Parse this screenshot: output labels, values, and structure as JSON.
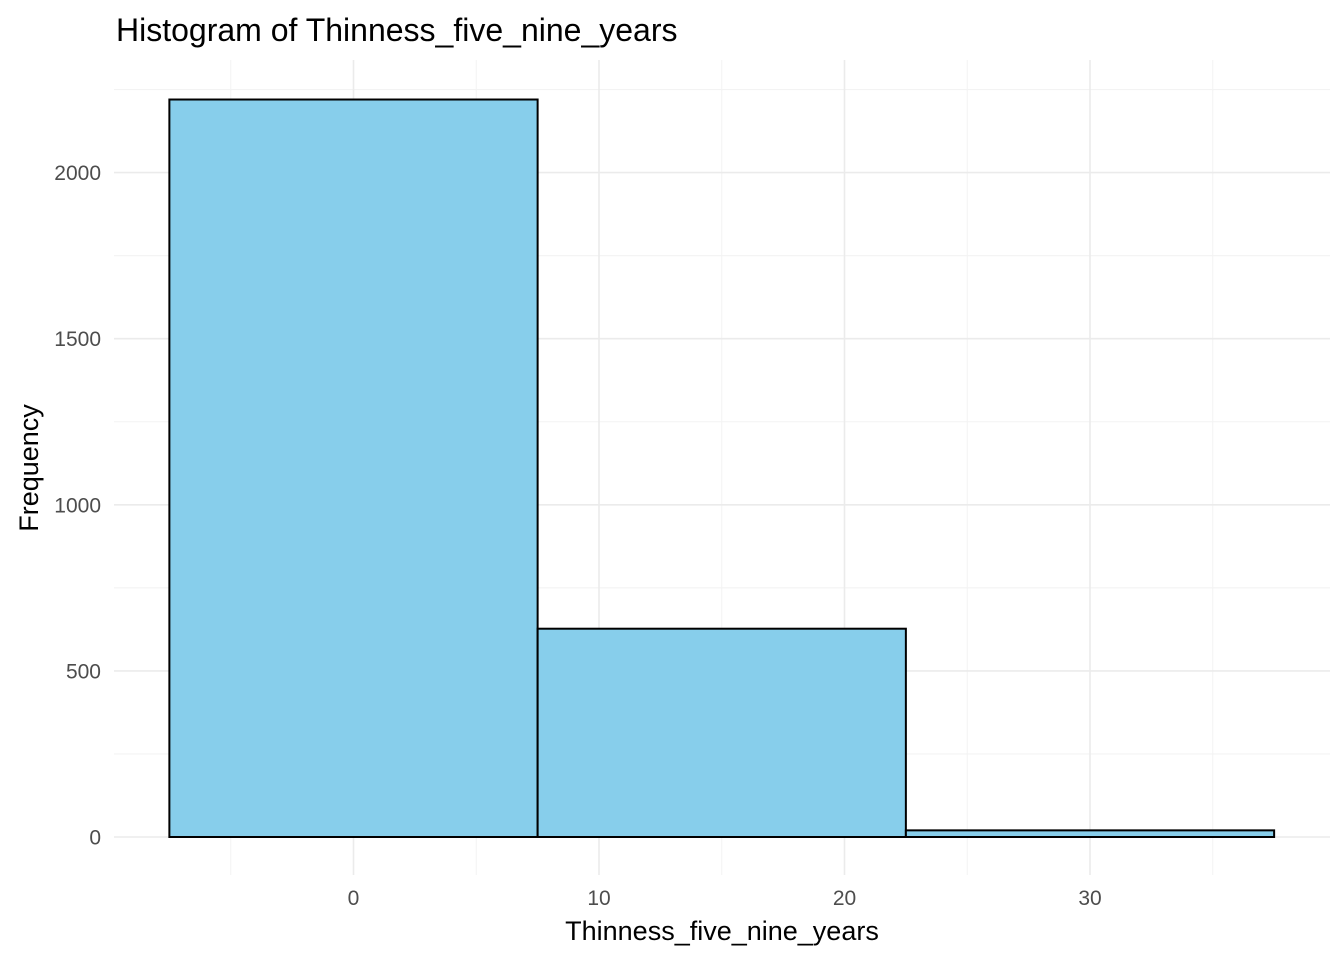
{
  "chart_data": {
    "type": "bar",
    "title": "Histogram of Thinness_five_nine_years",
    "xlabel": "Thinness_five_nine_years",
    "ylabel": "Frequency",
    "xlim": [
      -7.5,
      37.5
    ],
    "ylim": [
      0,
      2220
    ],
    "x_ticks": [
      0,
      10,
      20,
      30
    ],
    "y_ticks": [
      0,
      500,
      1000,
      1500,
      2000
    ],
    "bins": [
      {
        "x_start": -7.5,
        "x_end": 7.5,
        "count": 2220
      },
      {
        "x_start": 7.5,
        "x_end": 22.5,
        "count": 627
      },
      {
        "x_start": 22.5,
        "x_end": 37.5,
        "count": 20
      }
    ],
    "grid": true,
    "legend": "none",
    "colors": {
      "fill": "#87ceeb",
      "outline": "#000000",
      "grid": "#ebebeb"
    }
  }
}
